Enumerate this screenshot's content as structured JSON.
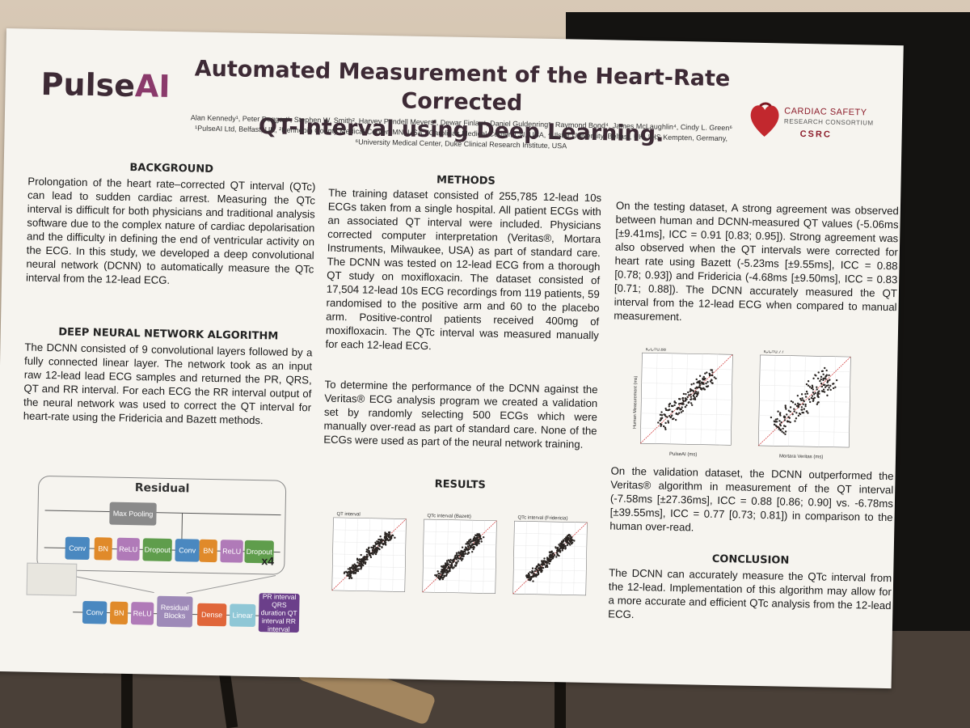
{
  "header": {
    "logo_part1": "Pulse",
    "logo_part2": "AI",
    "title_line1": "Automated Measurement of the Heart-Rate Corrected",
    "title_line2": "QT-Interval using Deep Learning.",
    "authors_line1": "Alan Kennedy¹, Peter Doggart¹, Stephen W. Smith², Harvey Pendell Meyers³, Dewar Finlay⁴, Daniel Guldenring⁵, Raymond Bond⁴, James McLaughlin⁴, Cindy L. Green⁶",
    "authors_line2": "¹PulseAI Ltd, Belfast, UK, ²Hennepin County Medical Center, MN, USA, ³Carolinas Medical Center, CN, USA, ⁴Ulster University, Belfast, UK, ⁵HS Kempten, Germany,",
    "authors_line3": "⁶University Medical Center, Duke Clinical Research Institute, USA",
    "csrc_line1": "CARDIAC SAFETY",
    "csrc_line2": "RESEARCH CONSORTIUM",
    "csrc_line3": "CSRC"
  },
  "background": {
    "heading": "BACKGROUND",
    "text": "Prolongation of the heart rate–corrected QT interval (QTc) can lead to sudden cardiac arrest. Measuring the QTc interval is difficult for both physicians and traditional analysis software due to the complex nature of cardiac depolarisation and the difficulty in defining the end of ventricular activity on the ECG. In this study, we developed a deep convolutional neural network (DCNN) to automatically measure the QTc interval from the 12-lead ECG."
  },
  "algorithm": {
    "heading": "DEEP NEURAL NETWORK ALGORITHM",
    "text": "The DCNN consisted of 9 convolutional layers followed by a fully connected linear layer. The network took as an input raw 12-lead lead ECG samples and returned the PR, QRS, QT and RR interval. For each ECG the RR interval output of the neural network was used to correct the QT interval for heart-rate using the Fridericia and Bazett methods."
  },
  "diagram": {
    "residual_title": "Residual",
    "max_pooling": "Max Pooling",
    "conv": "Conv",
    "bn": "BN",
    "relu": "ReLU",
    "dropout": "Dropout",
    "repeat": "x4",
    "residual_blocks": "Residual Blocks",
    "dense": "Dense",
    "linear": "Linear",
    "outputs": "PR interval QRS duration QT interval RR interval"
  },
  "methods": {
    "heading": "METHODS",
    "text1": "The training dataset consisted of 255,785 12-lead 10s ECGs taken from a single hospital. All patient ECGs with an associated QT interval were included. Physicians corrected computer interpretation (Veritas®, Mortara Instruments, Milwaukee, USA) as part of standard care. The DCNN was tested on 12-lead ECG from a thorough QT study on moxifloxacin. The dataset consisted of 17,504 12-lead 10s ECG recordings from 119 patients, 59 randomised to the positive arm and 60 to the placebo arm. Positive-control patients received 400mg of moxifloxacin. The QTc interval was measured manually for each 12-lead ECG.",
    "text2": "To determine the performance of the DCNN against the Veritas® ECG analysis program we created a validation set by randomly selecting 500 ECGs which were manually over-read as part of standard care. None of the ECGs were used as part of the neural network training."
  },
  "results": {
    "heading": "RESULTS",
    "text1": "On the testing dataset, A strong agreement was observed between human and DCNN-measured QT values (-5.06ms [±9.41ms], ICC = 0.91 [0.83; 0.95]). Strong agreement was also observed when the QT intervals were corrected for heart rate using Bazett (-5.23ms [±9.55ms], ICC = 0.88 [0.78; 0.93]) and Fridericia (-4.68ms [±9.50ms], ICC = 0.83 [0.71; 0.88]). The DCNN accurately measured the QT interval from the 12-lead ECG when compared to manual measurement.",
    "text2": "On the validation dataset, the DCNN outperformed the Veritas® algorithm in measurement of the QT interval (-7.58ms [±27.36ms], ICC = 0.88 [0.86; 0.90] vs. -6.78ms [±39.55ms], ICC = 0.77 [0.73; 0.81]) in comparison to the human over-read.",
    "plot_titles": [
      "QT interval",
      "QTc interval (Bazett)",
      "QTc interval (Fridericia)"
    ],
    "val_plot1_stats": "ICC=0.88",
    "val_plot2_stats": "ICC=0.77",
    "val_plot1_xlabel": "PulseAI (ms)",
    "val_plot2_xlabel": "Mortara Veritas (ms)",
    "val_ylabel": "Human Measurement (ms)"
  },
  "conclusion": {
    "heading": "CONCLUSION",
    "text": "The DCNN can accurately measure the QTc interval from the 12-lead. Implementation of this algorithm may allow for a more accurate and efficient QTc analysis from the 12-lead ECG."
  },
  "colors": {
    "brand": "#8a3a6b",
    "title": "#3d2a35",
    "csrc_red": "#8c1c2a",
    "scatter_point": "#2a2522",
    "identity_line": "#d03030"
  }
}
